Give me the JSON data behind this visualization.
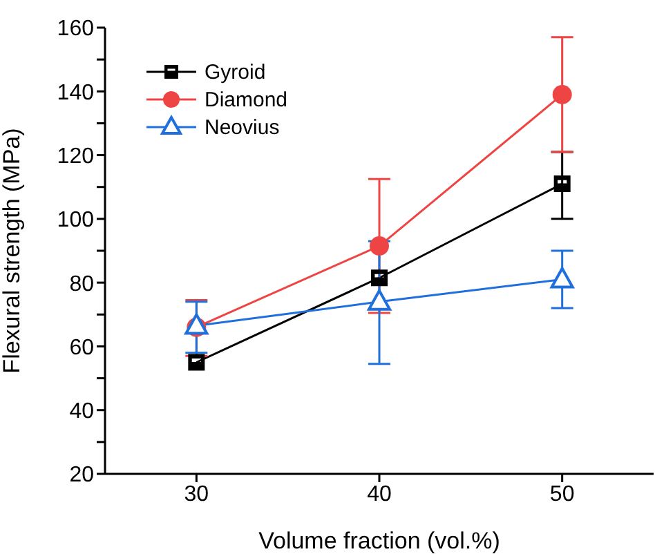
{
  "chart_data": {
    "type": "line",
    "xlabel": "Volume fraction (vol.%)",
    "ylabel": "Flexural strength (MPa)",
    "x": [
      30,
      40,
      50
    ],
    "series": [
      {
        "name": "Gyroid",
        "color": "#000000",
        "marker": "square",
        "values": [
          55,
          81.5,
          111
        ],
        "errors": [
          null,
          null,
          [
            100,
            121
          ]
        ]
      },
      {
        "name": "Diamond",
        "color": "#ef4444",
        "marker": "circle",
        "values": [
          66,
          91.5,
          139
        ],
        "errors": [
          [
            57,
            74.5
          ],
          [
            70.5,
            112.5
          ],
          [
            121,
            157
          ]
        ]
      },
      {
        "name": "Neovius",
        "color": "#1f6fdc",
        "marker": "triangle",
        "values": [
          66.5,
          74,
          81
        ],
        "errors": [
          [
            58,
            74
          ],
          [
            54.5,
            93
          ],
          [
            72,
            90
          ]
        ]
      }
    ],
    "xlim": [
      25,
      55
    ],
    "xticks": [
      30,
      40,
      50
    ],
    "ylim": [
      20,
      160
    ],
    "yticks": [
      20,
      {
        "value": 30,
        "label": null
      },
      40,
      {
        "value": 50,
        "label": null
      },
      60,
      {
        "value": 70,
        "label": null
      },
      80,
      {
        "value": 90,
        "label": null
      },
      100,
      {
        "value": 110,
        "label": null
      },
      120,
      {
        "value": 130,
        "label": null
      },
      140,
      {
        "value": 150,
        "label": null
      },
      160
    ],
    "grid": false,
    "legend": "top left"
  }
}
